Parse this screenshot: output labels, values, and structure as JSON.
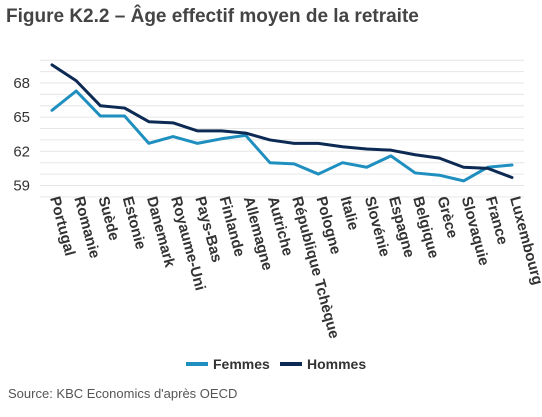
{
  "title": "Figure K2.2 – Âge effectif moyen de la retraite",
  "source": "Source: KBC Economics d'après OECD",
  "chart_data": {
    "type": "line",
    "categories": [
      "Portugal",
      "Romanie",
      "Suède",
      "Estonie",
      "Danemark",
      "Royaume-Uni",
      "Pays-Bas",
      "Finlande",
      "Allemagne",
      "Autriche",
      "République Tchèque",
      "Pologne",
      "Italie",
      "Slovénie",
      "Espagne",
      "Belgique",
      "Grèce",
      "Slovaquie",
      "France",
      "Luxembourg"
    ],
    "series": [
      {
        "name": "Femmes",
        "color": "#1f8fbf",
        "values": [
          65.6,
          67.3,
          65.1,
          65.1,
          62.7,
          63.3,
          62.7,
          63.1,
          63.4,
          61.0,
          60.9,
          60.0,
          61.0,
          60.6,
          61.6,
          60.1,
          59.9,
          59.4,
          60.6,
          60.8
        ]
      },
      {
        "name": "Hommes",
        "color": "#0d2a54",
        "values": [
          69.6,
          68.2,
          66.0,
          65.8,
          64.6,
          64.5,
          63.8,
          63.8,
          63.6,
          63.0,
          62.7,
          62.7,
          62.4,
          62.2,
          62.1,
          61.7,
          61.4,
          60.6,
          60.5,
          59.7
        ]
      }
    ],
    "yticks": [
      59,
      62,
      65,
      68
    ],
    "ylim": [
      58.6,
      70.2
    ],
    "grid": true,
    "legend_position": "bottom"
  }
}
